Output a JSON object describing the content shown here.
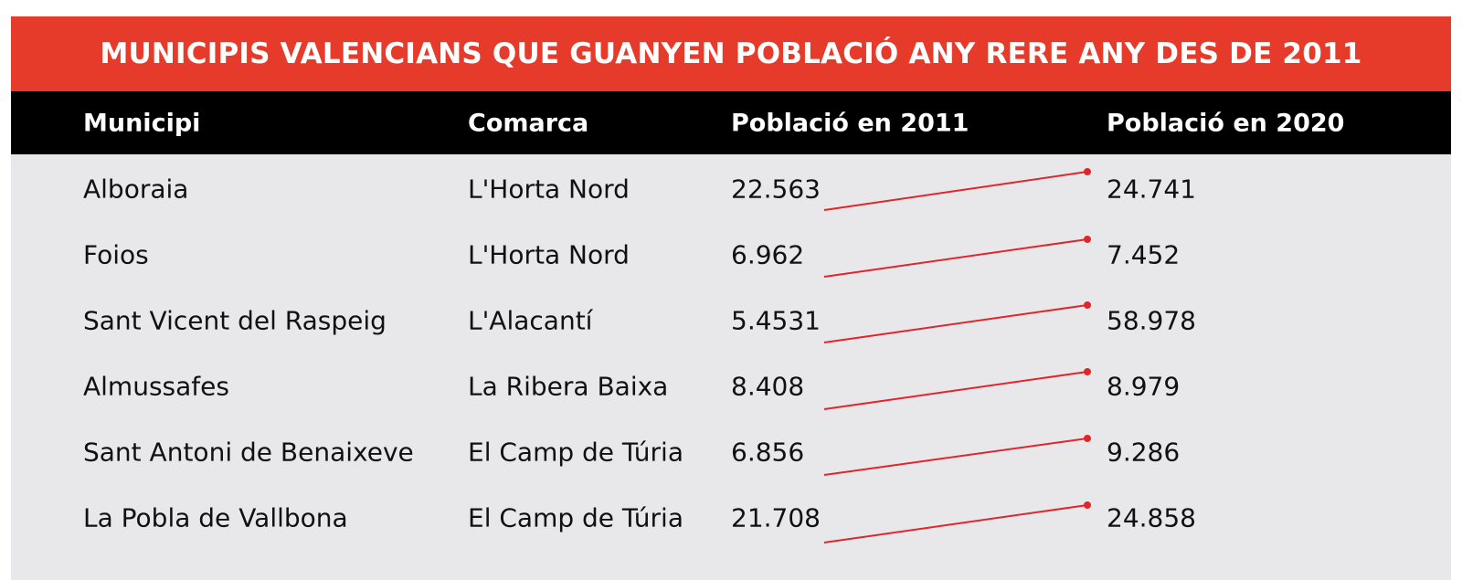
{
  "title": "MUNICIPIS VALENCIANS QUE GUANYEN POBLACIÓ ANY RERE ANY DES DE 2011",
  "columns": [
    "Municipi",
    "Comarca",
    "Població en 2011",
    "Població en 2020"
  ],
  "rows": [
    {
      "municipi": "Alboraia",
      "comarca": "L'Horta Nord",
      "pop2011": "22.563",
      "pop2020": "24.741"
    },
    {
      "municipi": "Foios",
      "comarca": "L'Horta Nord",
      "pop2011": "6.962",
      "pop2020": "7.452"
    },
    {
      "municipi": "Sant Vicent del Raspeig",
      "comarca": "L'Alacantí",
      "pop2011": "5.4531",
      "pop2020": "58.978"
    },
    {
      "municipi": "Almussafes",
      "comarca": "La Ribera Baixa",
      "pop2011": "8.408",
      "pop2020": "8.979"
    },
    {
      "municipi": "Sant Antoni de Benaixeve",
      "comarca": "El Camp de Túria",
      "pop2011": "6.856",
      "pop2020": "9.286"
    },
    {
      "municipi": "La Pobla de Vallbona",
      "comarca": "El Camp de Túria",
      "pop2011": "21.708",
      "pop2020": "24.858"
    }
  ],
  "colors": {
    "accent": "#e63b2a",
    "header_bg": "#000000",
    "body_bg": "#e8e8ea",
    "connector": "#e0262b"
  }
}
